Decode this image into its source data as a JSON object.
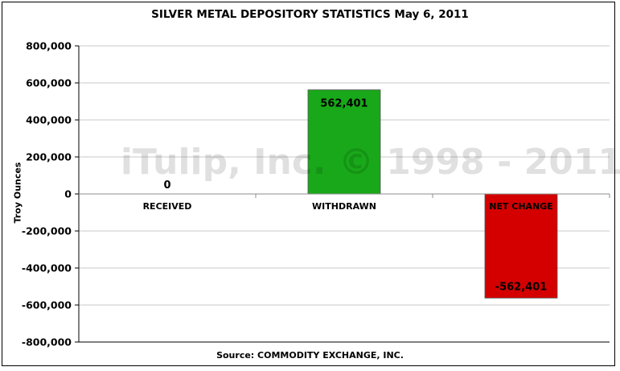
{
  "chart_data": {
    "type": "bar",
    "title": "SILVER METAL DEPOSITORY STATISTICS May 6, 2011",
    "ylabel": "Troy Ounces",
    "xlabel": "",
    "source": "Source: COMMODITY EXCHANGE, INC.",
    "watermark": "iTulip, Inc. © 1998 - 2011",
    "categories": [
      "RECEIVED",
      "WITHDRAWN",
      "NET CHANGE"
    ],
    "values": [
      0,
      562401,
      -562401
    ],
    "value_labels": [
      "0",
      "562,401",
      "-562,401"
    ],
    "colors": [
      "#19a819",
      "#19a819",
      "#d40000"
    ],
    "ylim": [
      -800000,
      800000
    ],
    "yticks": [
      800000,
      600000,
      400000,
      200000,
      0,
      -200000,
      -400000,
      -600000,
      -800000
    ],
    "ytick_labels": [
      "800,000",
      "600,000",
      "400,000",
      "200,000",
      "0",
      "-200,000",
      "-400,000",
      "-600,000",
      "-800,000"
    ],
    "grid": true,
    "legend": "none"
  }
}
